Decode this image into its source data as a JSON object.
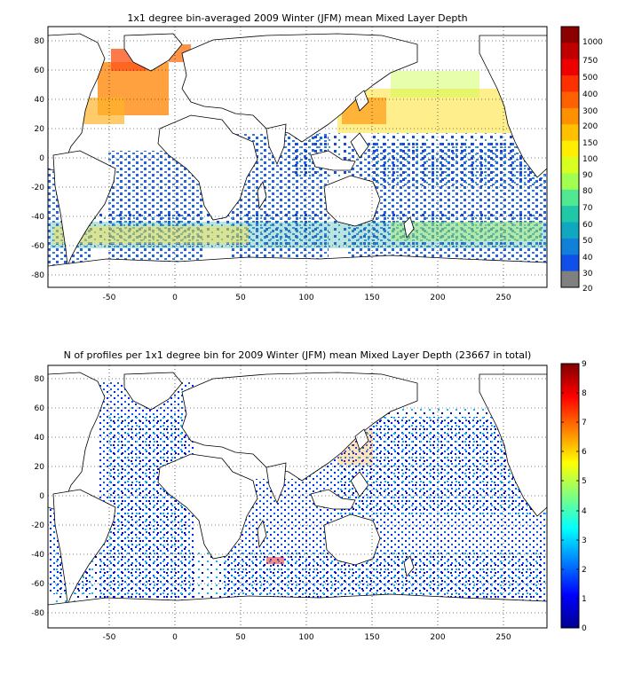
{
  "figure": {
    "panels": [
      {
        "title": "1x1 degree bin-averaged 2009 Winter (JFM) mean Mixed Layer Depth",
        "xticks": [
          "-50",
          "0",
          "50",
          "100",
          "150",
          "200",
          "250"
        ],
        "yticks": [
          "80",
          "60",
          "40",
          "20",
          "0",
          "-20",
          "-40",
          "-60",
          "-80"
        ],
        "colorbar": {
          "type": "discrete",
          "labels": [
            "1000",
            "750",
            "500",
            "400",
            "300",
            "200",
            "150",
            "100",
            "90",
            "80",
            "70",
            "60",
            "50",
            "40",
            "30",
            "20"
          ],
          "colors": [
            "#8b0000",
            "#c00000",
            "#ee0000",
            "#ff3000",
            "#ff6000",
            "#ff9000",
            "#ffc000",
            "#ffee00",
            "#d8ff20",
            "#a0ff50",
            "#50e890",
            "#20c8a8",
            "#10a8c0",
            "#1080d8",
            "#1050e8",
            "#808080"
          ]
        }
      },
      {
        "title": "N of profiles per 1x1 degree bin for 2009 Winter (JFM) mean Mixed Layer Depth  (23667 in total)",
        "xticks": [
          "-50",
          "0",
          "50",
          "100",
          "150",
          "200",
          "250"
        ],
        "yticks": [
          "80",
          "60",
          "40",
          "20",
          "0",
          "-20",
          "-40",
          "-60",
          "-80"
        ],
        "colorbar": {
          "type": "continuous",
          "labels": [
            "9",
            "8",
            "7",
            "6",
            "5",
            "4",
            "3",
            "2",
            "1",
            "0"
          ],
          "colormap": "jet",
          "range": [
            0,
            9
          ]
        }
      }
    ],
    "map_extent": {
      "lon": [
        -90,
        290
      ],
      "lat": [
        -90,
        90
      ]
    }
  }
}
